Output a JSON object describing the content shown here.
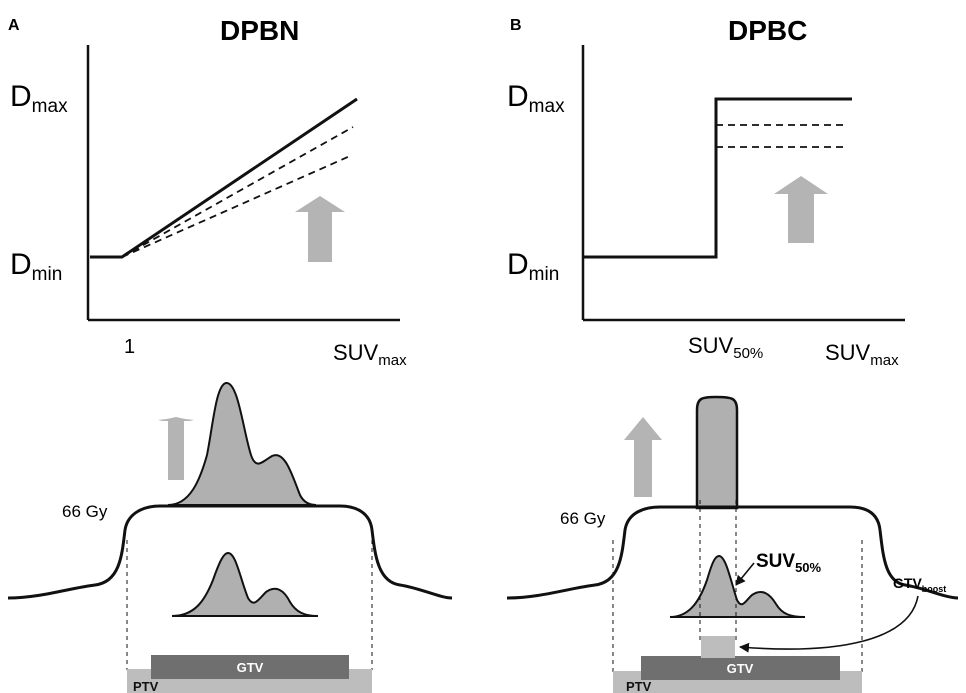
{
  "panels": [
    {
      "letter": "A",
      "title": "DPBN",
      "y_top_label": "D",
      "y_top_sub": "max",
      "y_bottom_label": "D",
      "y_bottom_sub": "min",
      "x_tick_1": "1",
      "x_tick_2": "SUV",
      "x_tick_2_sub": "max",
      "dose_label": "66 Gy",
      "gtv_label": "GTV",
      "ptv_label": "PTV"
    },
    {
      "letter": "B",
      "title": "DPBC",
      "y_top_label": "D",
      "y_top_sub": "max",
      "y_bottom_label": "D",
      "y_bottom_sub": "min",
      "x_tick_1": "SUV",
      "x_tick_1_sub": "50%",
      "x_tick_2": "SUV",
      "x_tick_2_sub": "max",
      "dose_label": "66 Gy",
      "gtv_label": "GTV",
      "ptv_label": "PTV",
      "suv_annotation": "SUV",
      "suv_annotation_sub": "50%",
      "boost_label": "GTV",
      "boost_label_sub": "boost"
    }
  ],
  "colors": {
    "line": "#111111",
    "arrow": "#b4b4b4",
    "fill": "#b0b0b0",
    "gtv_bar": "#6f6f6f",
    "ptv_bar": "#bdbdbd",
    "boost_box": "#bdbdbd"
  }
}
